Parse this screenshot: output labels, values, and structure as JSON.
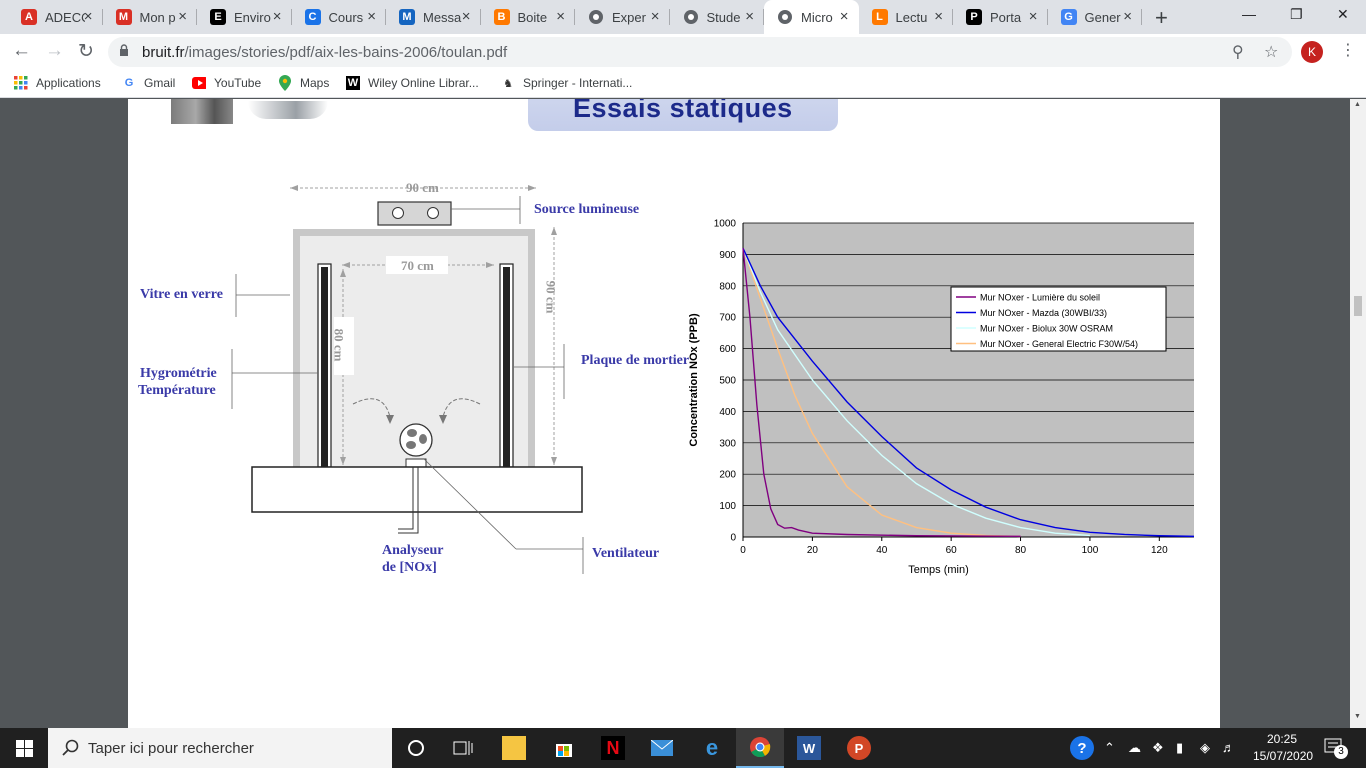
{
  "browser": {
    "tabs": [
      {
        "title": "ADECO",
        "icon": "adobe-acrobat-icon",
        "color": "#d93025"
      },
      {
        "title": "Mon p",
        "icon": "adobe-acrobat-icon",
        "color": "#d93025"
      },
      {
        "title": "Enviro",
        "icon": "udemy-u-icon",
        "color": "#000000"
      },
      {
        "title": "Cours",
        "icon": "course-icon",
        "color": "#1a73e8"
      },
      {
        "title": "Messa",
        "icon": "zimbra-z-icon",
        "color": "#1565c0"
      },
      {
        "title": "Boite",
        "icon": "orange-mail-icon",
        "color": "#ff7900"
      },
      {
        "title": "Exper",
        "icon": "globe-icon",
        "color": "#5f6368"
      },
      {
        "title": "Stude",
        "icon": "globe-icon",
        "color": "#5f6368"
      },
      {
        "title": "Micro",
        "icon": "globe-icon",
        "color": "#5f6368",
        "active": true
      },
      {
        "title": "Lectu",
        "icon": "orange-mail-icon",
        "color": "#ff7900"
      },
      {
        "title": "Porta",
        "icon": "academia-a-icon",
        "color": "#000000"
      },
      {
        "title": "Gener",
        "icon": "google-g-icon",
        "color": "#4285f4"
      }
    ],
    "address": {
      "host": "bruit.fr",
      "path": "/images/stories/pdf/aix-les-bains-2006/toulan.pdf"
    },
    "profile_initial": "K",
    "bookmarks": [
      {
        "label": "Applications",
        "icon": "apps-grid-icon"
      },
      {
        "label": "Gmail",
        "icon": "google-g-icon"
      },
      {
        "label": "YouTube",
        "icon": "youtube-icon"
      },
      {
        "label": "Maps",
        "icon": "maps-pin-icon"
      },
      {
        "label": "Wiley Online Librar...",
        "icon": "wiley-w-icon"
      },
      {
        "label": "Springer - Internati...",
        "icon": "springer-icon"
      }
    ]
  },
  "slide": {
    "title": "Essais statiques",
    "diagram": {
      "dim_top": "90 cm",
      "dim_inner": "70 cm",
      "dim_height_outer": "90 cm",
      "dim_height_inner": "80 cm",
      "source": "Source lumineuse",
      "glass": "Vitre en verre",
      "hygro_1": "Hygrométrie",
      "hygro_2": "Température",
      "mortar": "Plaque de mortier",
      "analyzer_1": "Analyseur",
      "analyzer_2": "de [NOx]",
      "fan": "Ventilateur"
    }
  },
  "chart_data": {
    "type": "line",
    "xlabel": "Temps (min)",
    "ylabel": "Concentration NOx  (PPB)",
    "xlim": [
      0,
      130
    ],
    "ylim": [
      0,
      1000
    ],
    "xticks": [
      0,
      20,
      40,
      60,
      80,
      100,
      120
    ],
    "yticks": [
      0,
      100,
      200,
      300,
      400,
      500,
      600,
      700,
      800,
      900,
      1000
    ],
    "grid": "horizontal",
    "background": "#c0c0c0",
    "legend_position": "top-right",
    "series": [
      {
        "name": "Mur NOxer - Lumière du soleil",
        "color": "#800080",
        "x": [
          0,
          2,
          4,
          6,
          8,
          10,
          12,
          14,
          16,
          20,
          30,
          50,
          80
        ],
        "y": [
          920,
          700,
          420,
          200,
          90,
          40,
          28,
          30,
          22,
          12,
          8,
          4,
          2
        ]
      },
      {
        "name": "Mur NOxer - Mazda (30WBI/33)",
        "color": "#0000e0",
        "x": [
          0,
          5,
          10,
          20,
          30,
          40,
          50,
          60,
          70,
          80,
          90,
          100,
          110,
          120,
          130
        ],
        "y": [
          920,
          800,
          700,
          560,
          430,
          320,
          220,
          150,
          95,
          55,
          30,
          15,
          8,
          4,
          2
        ]
      },
      {
        "name": "Mur NOxer - Biolux 30W OSRAM",
        "color": "#d0ffff",
        "x": [
          0,
          5,
          10,
          20,
          30,
          40,
          50,
          60,
          70,
          80,
          90,
          100
        ],
        "y": [
          920,
          780,
          660,
          500,
          370,
          260,
          170,
          105,
          60,
          30,
          12,
          5
        ]
      },
      {
        "name": "Mur NOxer - General Electric F30W/54)",
        "color": "#ffc080",
        "x": [
          0,
          5,
          10,
          15,
          20,
          30,
          40,
          50,
          60,
          70,
          80
        ],
        "y": [
          920,
          760,
          600,
          450,
          330,
          160,
          70,
          30,
          12,
          5,
          2
        ]
      }
    ]
  },
  "taskbar": {
    "search_placeholder": "Taper ici pour rechercher",
    "time": "20:25",
    "date": "15/07/2020",
    "notifications": "3"
  }
}
